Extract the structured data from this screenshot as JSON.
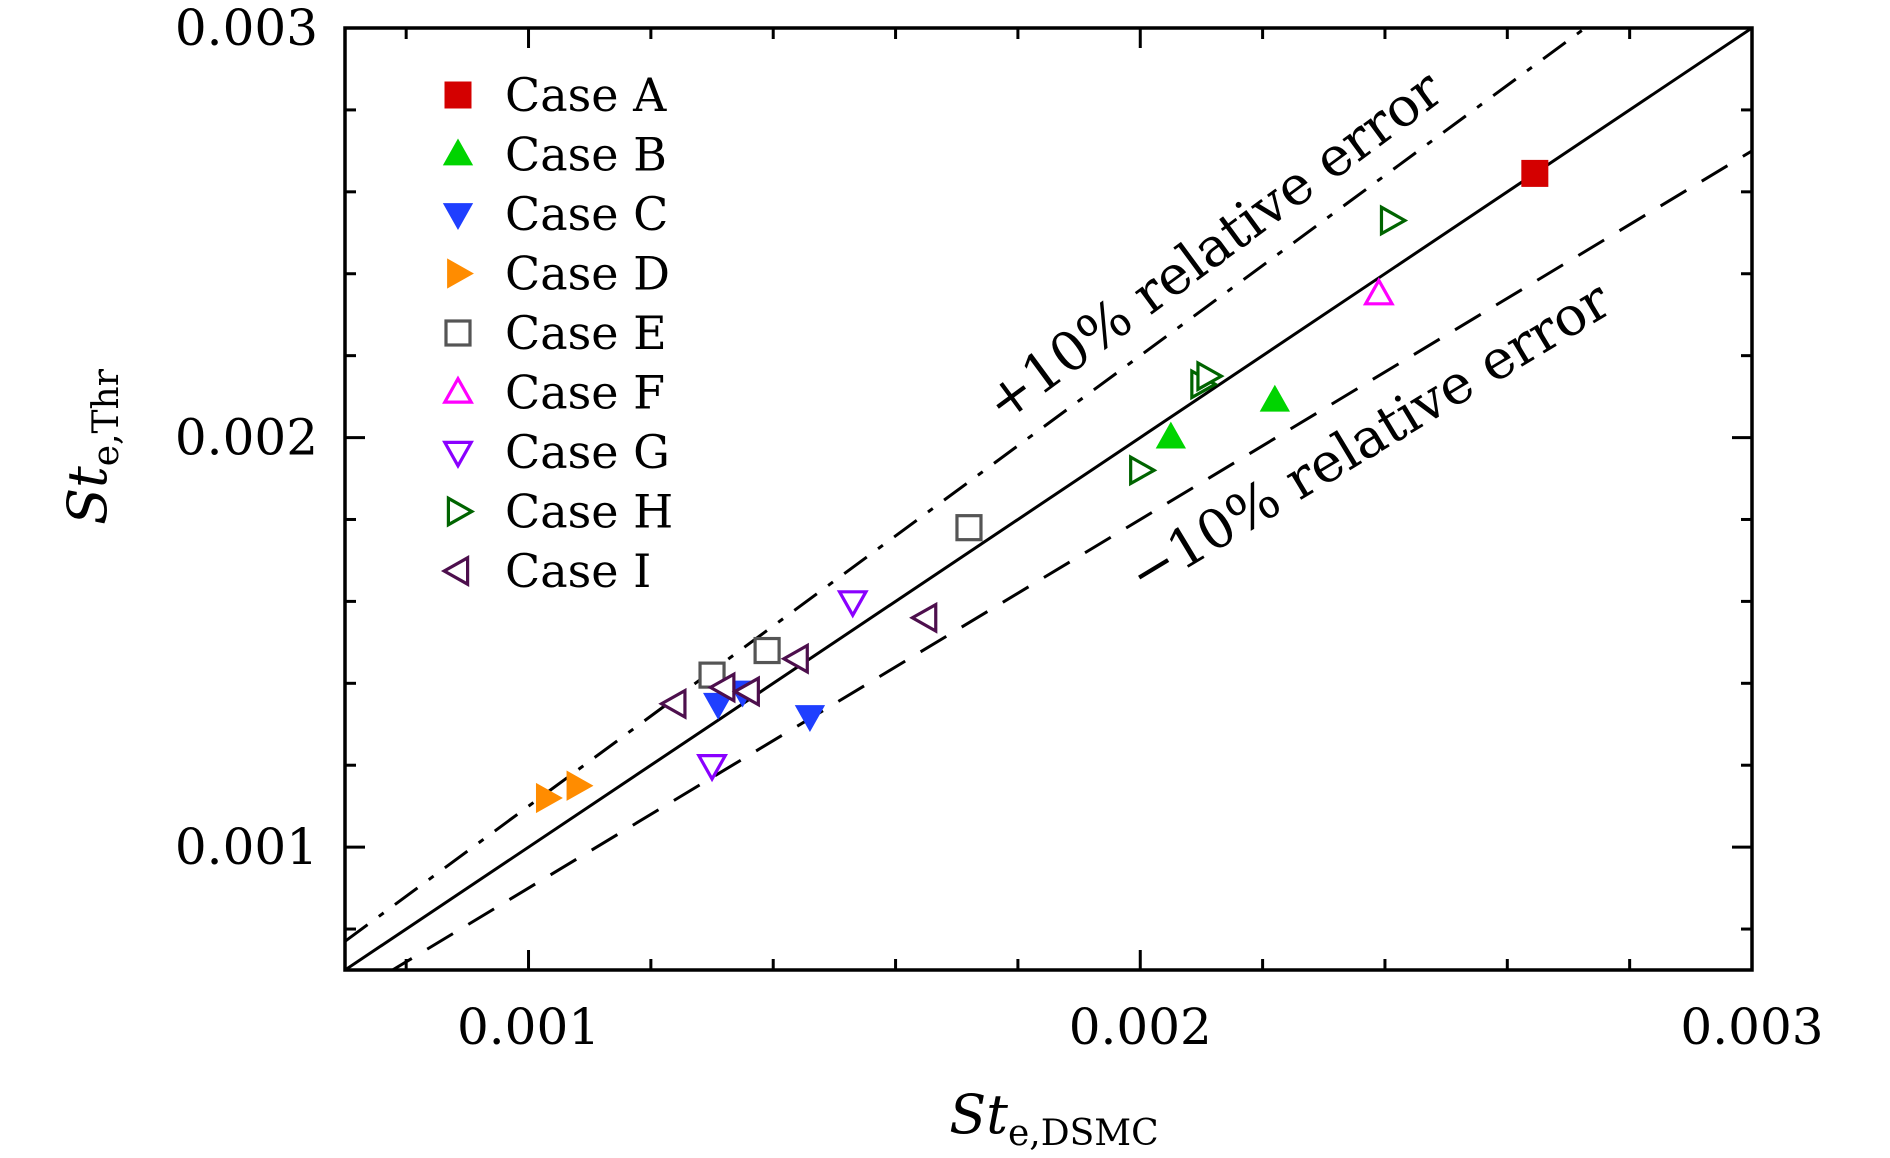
{
  "chart_data": {
    "type": "scatter",
    "title": "",
    "xlabel": {
      "main": "St",
      "sub": "e,DSMC"
    },
    "ylabel": {
      "main": "St",
      "sub": "e,Thr"
    },
    "xlim": [
      0.0007,
      0.003
    ],
    "ylim": [
      0.0007,
      0.003
    ],
    "xticks": [
      {
        "value": 0.001,
        "label": "0.001"
      },
      {
        "value": 0.002,
        "label": "0.002"
      },
      {
        "value": 0.003,
        "label": "0.003"
      }
    ],
    "yticks": [
      {
        "value": 0.001,
        "label": "0.001"
      },
      {
        "value": 0.002,
        "label": "0.002"
      },
      {
        "value": 0.003,
        "label": "0.003"
      }
    ],
    "minor_step": 0.0002,
    "grid": false,
    "legend_position": "top-left",
    "reference_lines": [
      {
        "name": "exact",
        "slope": 1.0,
        "style": "solid"
      },
      {
        "name": "plus10",
        "slope": 1.1,
        "style": "dashdot"
      },
      {
        "name": "minus10",
        "slope": 0.9,
        "style": "dashed"
      }
    ],
    "annotations": [
      {
        "text": "+10% relative error",
        "line": "plus10"
      },
      {
        "text": "−10% relative error",
        "line": "minus10"
      }
    ],
    "series": [
      {
        "name": "Case A",
        "marker": "square",
        "filled": true,
        "color": "#d40000",
        "points": [
          [
            0.002645,
            0.002645
          ]
        ]
      },
      {
        "name": "Case B",
        "marker": "triangle-up",
        "filled": true,
        "color": "#00d400",
        "points": [
          [
            0.00205,
            0.002
          ],
          [
            0.00222,
            0.00209
          ]
        ]
      },
      {
        "name": "Case C",
        "marker": "triangle-down",
        "filled": true,
        "color": "#1f3fff",
        "points": [
          [
            0.00131,
            0.00135
          ],
          [
            0.00135,
            0.00138
          ],
          [
            0.00146,
            0.00132
          ]
        ]
      },
      {
        "name": "Case D",
        "marker": "triangle-right",
        "filled": true,
        "color": "#ff8c00",
        "points": [
          [
            0.00103,
            0.00112
          ],
          [
            0.00108,
            0.00115
          ]
        ]
      },
      {
        "name": "Case E",
        "marker": "square",
        "filled": false,
        "color": "#555555",
        "points": [
          [
            0.0013,
            0.00142
          ],
          [
            0.00139,
            0.00148
          ],
          [
            0.00172,
            0.00178
          ]
        ]
      },
      {
        "name": "Case F",
        "marker": "triangle-up",
        "filled": false,
        "color": "#ff00ff",
        "points": [
          [
            0.00239,
            0.00235
          ]
        ]
      },
      {
        "name": "Case G",
        "marker": "triangle-down",
        "filled": false,
        "color": "#8a00ff",
        "points": [
          [
            0.0013,
            0.0012
          ],
          [
            0.00153,
            0.0016
          ]
        ]
      },
      {
        "name": "Case H",
        "marker": "triangle-right",
        "filled": false,
        "color": "#006400",
        "points": [
          [
            0.002,
            0.00192
          ],
          [
            0.0021,
            0.00213
          ],
          [
            0.00211,
            0.00215
          ],
          [
            0.00241,
            0.00253
          ]
        ]
      },
      {
        "name": "Case I",
        "marker": "triangle-left",
        "filled": false,
        "color": "#4d0f4d",
        "points": [
          [
            0.00124,
            0.00135
          ],
          [
            0.00132,
            0.00139
          ],
          [
            0.00136,
            0.00138
          ],
          [
            0.00144,
            0.00146
          ],
          [
            0.00165,
            0.00156
          ]
        ]
      }
    ]
  }
}
